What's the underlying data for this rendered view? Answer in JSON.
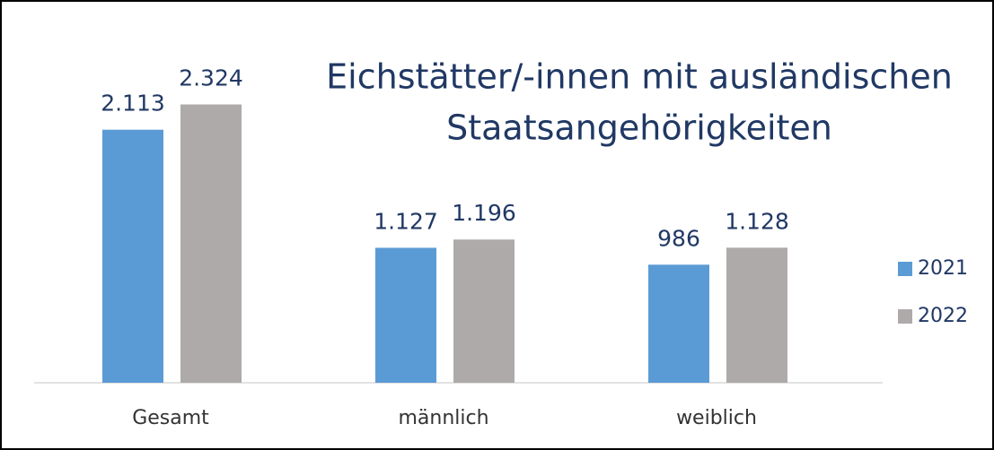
{
  "chart_data": {
    "type": "bar",
    "title": [
      "Eichstätter/-innen mit ausländischen",
      "Staatsangehörigkeiten"
    ],
    "categories": [
      "Gesamt",
      "männlich",
      "weiblich"
    ],
    "series": [
      {
        "name": "2021",
        "color": "#5b9bd5",
        "values": [
          2113,
          1127,
          986
        ],
        "value_labels": [
          "2.113",
          "1.127",
          "986"
        ]
      },
      {
        "name": "2022",
        "color": "#aeaaaa",
        "values": [
          2324,
          1196,
          1128
        ],
        "value_labels": [
          "2.324",
          "1.196",
          "1.128"
        ]
      }
    ],
    "ylim": [
      0,
      2500
    ],
    "legend": "right"
  }
}
